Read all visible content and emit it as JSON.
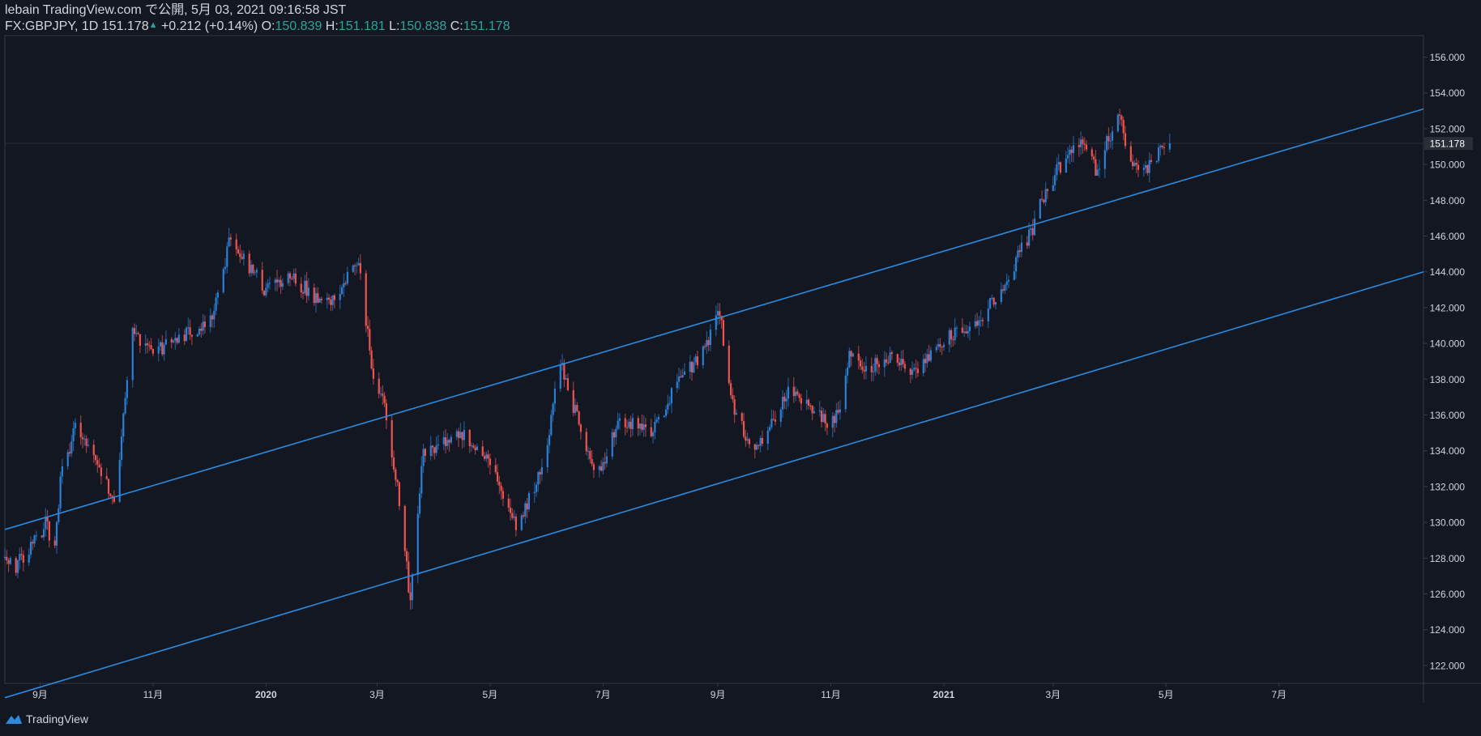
{
  "header": {
    "line1": "lebain TradingView.com で公開, 5月 03, 2021 09:16:58 JST",
    "symbol": "FX:GBPJPY, 1D",
    "last": "151.178",
    "arrow": "▲",
    "change": "+0.212 (+0.14%)",
    "o_label": "O:",
    "o_val": "150.839",
    "h_label": "H:",
    "h_val": "151.181",
    "l_label": "L:",
    "l_val": "150.838",
    "c_label": "C:",
    "c_val": "151.178"
  },
  "footer": {
    "brand": "TradingView",
    "logo_icon": "tradingview-logo-icon"
  },
  "colors": {
    "background": "#131722",
    "up": "#2962ff",
    "up_light": "#2a7fd6",
    "down": "#ef5350",
    "channel": "#2a8be0",
    "axis_text": "#d1d4dc",
    "price_label_bg": "#2a2e39"
  },
  "chart_data": {
    "type": "candlestick",
    "symbol": "FX:GBPJPY",
    "interval": "1D",
    "y_ticks": [
      "156.000",
      "154.000",
      "152.000",
      "150.000",
      "148.000",
      "146.000",
      "144.000",
      "142.000",
      "140.000",
      "138.000",
      "136.000",
      "134.000",
      "132.000",
      "130.000",
      "128.000",
      "126.000",
      "124.000",
      "122.000"
    ],
    "x_ticks": [
      "9月",
      "11月",
      "2020",
      "3月",
      "5月",
      "7月",
      "9月",
      "11月",
      "2021",
      "3月",
      "5月",
      "7月"
    ],
    "x_tick_bold": [
      false,
      false,
      true,
      false,
      false,
      false,
      false,
      false,
      true,
      false,
      false,
      false
    ],
    "ylim": [
      121.0,
      157.2
    ],
    "xlim": [
      "2019-08-13",
      "2021-09-17"
    ],
    "current_price_label": "151.178",
    "keypoints": [
      {
        "d": "2019-08-13",
        "p": 128.0
      },
      {
        "d": "2019-08-19",
        "p": 127.5
      },
      {
        "d": "2019-09-02",
        "p": 129.5
      },
      {
        "d": "2019-09-04",
        "p": 130.0
      },
      {
        "d": "2019-09-09",
        "p": 128.3
      },
      {
        "d": "2019-09-12",
        "p": 132.5
      },
      {
        "d": "2019-09-20",
        "p": 135.2
      },
      {
        "d": "2019-10-01",
        "p": 133.5
      },
      {
        "d": "2019-10-12",
        "p": 131.0
      },
      {
        "d": "2019-10-17",
        "p": 137.0
      },
      {
        "d": "2019-10-21",
        "p": 140.5
      },
      {
        "d": "2019-11-01",
        "p": 139.5
      },
      {
        "d": "2019-11-15",
        "p": 140.2
      },
      {
        "d": "2019-12-03",
        "p": 141.5
      },
      {
        "d": "2019-12-13",
        "p": 146.0
      },
      {
        "d": "2019-12-31",
        "p": 143.0
      },
      {
        "d": "2020-01-15",
        "p": 143.8
      },
      {
        "d": "2020-02-01",
        "p": 142.0
      },
      {
        "d": "2020-02-20",
        "p": 144.5
      },
      {
        "d": "2020-02-28",
        "p": 138.0
      },
      {
        "d": "2020-03-05",
        "p": 136.5
      },
      {
        "d": "2020-03-12",
        "p": 132.0
      },
      {
        "d": "2020-03-19",
        "p": 125.5
      },
      {
        "d": "2020-03-26",
        "p": 134.0
      },
      {
        "d": "2020-04-15",
        "p": 135.0
      },
      {
        "d": "2020-05-01",
        "p": 133.5
      },
      {
        "d": "2020-05-15",
        "p": 129.8
      },
      {
        "d": "2020-05-29",
        "p": 133.0
      },
      {
        "d": "2020-06-08",
        "p": 138.8
      },
      {
        "d": "2020-06-24",
        "p": 133.5
      },
      {
        "d": "2020-06-30",
        "p": 133.0
      },
      {
        "d": "2020-07-10",
        "p": 135.8
      },
      {
        "d": "2020-07-28",
        "p": 135.2
      },
      {
        "d": "2020-08-10",
        "p": 137.7
      },
      {
        "d": "2020-08-24",
        "p": 139.5
      },
      {
        "d": "2020-09-02",
        "p": 141.7
      },
      {
        "d": "2020-09-10",
        "p": 136.0
      },
      {
        "d": "2020-09-22",
        "p": 134.0
      },
      {
        "d": "2020-10-09",
        "p": 137.5
      },
      {
        "d": "2020-10-30",
        "p": 135.5
      },
      {
        "d": "2020-11-06",
        "p": 136.0
      },
      {
        "d": "2020-11-11",
        "p": 139.5
      },
      {
        "d": "2020-11-20",
        "p": 138.5
      },
      {
        "d": "2020-12-04",
        "p": 139.5
      },
      {
        "d": "2020-12-14",
        "p": 138.2
      },
      {
        "d": "2020-12-31",
        "p": 140.2
      },
      {
        "d": "2021-01-22",
        "p": 141.5
      },
      {
        "d": "2021-02-05",
        "p": 143.8
      },
      {
        "d": "2021-02-18",
        "p": 146.5
      },
      {
        "d": "2021-02-25",
        "p": 148.5
      },
      {
        "d": "2021-03-04",
        "p": 149.8
      },
      {
        "d": "2021-03-18",
        "p": 151.5
      },
      {
        "d": "2021-03-24",
        "p": 149.6
      },
      {
        "d": "2021-04-05",
        "p": 152.8
      },
      {
        "d": "2021-04-13",
        "p": 150.0
      },
      {
        "d": "2021-04-22",
        "p": 149.8
      },
      {
        "d": "2021-04-29",
        "p": 151.2
      },
      {
        "d": "2021-05-03",
        "p": 151.178
      }
    ],
    "channel_lines": [
      {
        "name": "upper",
        "points": [
          {
            "d": "2019-08-13",
            "p": 129.6
          },
          {
            "d": "2021-09-17",
            "p": 153.1
          }
        ]
      },
      {
        "name": "lower",
        "points": [
          {
            "d": "2019-08-13",
            "p": 120.2
          },
          {
            "d": "2021-09-17",
            "p": 144.0
          }
        ]
      }
    ]
  }
}
